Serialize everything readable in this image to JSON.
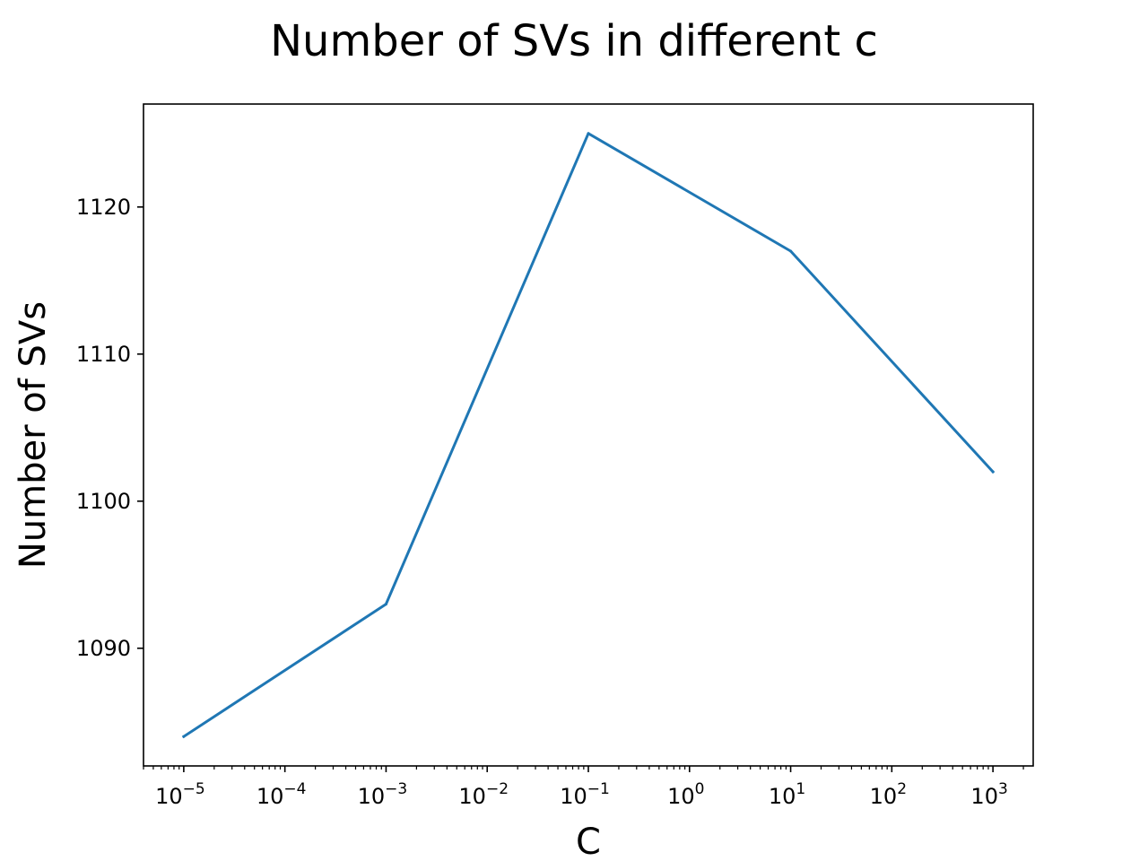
{
  "chart_data": {
    "type": "line",
    "title": "Number of SVs in different c",
    "xlabel": "C",
    "ylabel": "Number of SVs",
    "x_scale": "log",
    "xlim": [
      4e-06,
      2500
    ],
    "ylim": [
      1082,
      1127
    ],
    "grid": false,
    "x_ticks": [
      {
        "value": 1e-05,
        "base": "10",
        "exponent": "−5"
      },
      {
        "value": 0.0001,
        "base": "10",
        "exponent": "−4"
      },
      {
        "value": 0.001,
        "base": "10",
        "exponent": "−3"
      },
      {
        "value": 0.01,
        "base": "10",
        "exponent": "−2"
      },
      {
        "value": 0.1,
        "base": "10",
        "exponent": "−1"
      },
      {
        "value": 1,
        "base": "10",
        "exponent": "0"
      },
      {
        "value": 10,
        "base": "10",
        "exponent": "1"
      },
      {
        "value": 100,
        "base": "10",
        "exponent": "2"
      },
      {
        "value": 1000,
        "base": "10",
        "exponent": "3"
      }
    ],
    "y_ticks": [
      1090,
      1100,
      1110,
      1120
    ],
    "series": [
      {
        "color": "#1f77b4",
        "x": [
          1e-05,
          0.001,
          0.1,
          10,
          1000
        ],
        "y": [
          1084,
          1093,
          1125,
          1117,
          1102
        ]
      }
    ]
  }
}
